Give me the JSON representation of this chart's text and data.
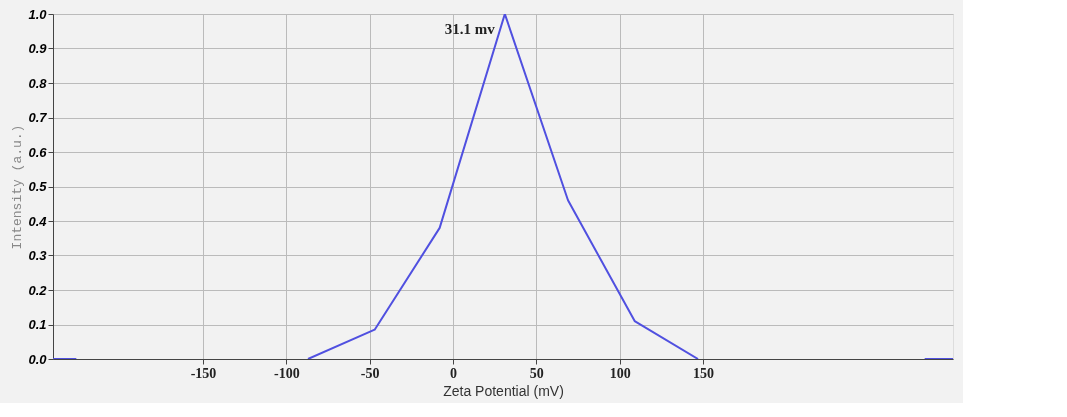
{
  "chart_data": {
    "type": "line",
    "xlabel": "Zeta Potential (mV)",
    "ylabel": "Intensity (a.u.)",
    "series": [
      {
        "color": "#5050e0",
        "x": [
          -240,
          -226
        ],
        "values": [
          0,
          0
        ]
      },
      {
        "color": "#5050e0",
        "x": [
          -87,
          -47,
          -8,
          31.1,
          69,
          109,
          147
        ],
        "values": [
          0,
          0.085,
          0.38,
          1.0,
          0.46,
          0.11,
          0
        ]
      },
      {
        "color": "#5050e0",
        "x": [
          283,
          300
        ],
        "values": [
          0,
          0
        ]
      }
    ],
    "xlim": [
      -240,
      300
    ],
    "xticks": [
      -150,
      -100,
      -50,
      0,
      50,
      100,
      150
    ],
    "ylim": [
      0,
      1.0
    ],
    "yticks": [
      {
        "value": 0,
        "label": "0.0"
      },
      {
        "value": 0.1,
        "label": "0.1"
      },
      {
        "value": 0.2,
        "label": "0.2"
      },
      {
        "value": 0.3,
        "label": "0.3"
      },
      {
        "value": 0.4,
        "label": "0.4"
      },
      {
        "value": 0.5,
        "label": "0.5"
      },
      {
        "value": 0.6,
        "label": "0.6"
      },
      {
        "value": 0.7,
        "label": "0.7"
      },
      {
        "value": 0.8,
        "label": "0.8"
      },
      {
        "value": 0.9,
        "label": "0.9"
      },
      {
        "value": 1.0,
        "label": "1.0"
      }
    ],
    "annotations": [
      {
        "text": "31.1 mv",
        "x": 31.1,
        "y": 1.0
      }
    ],
    "grid": true,
    "marker": "none",
    "line_style": "solid"
  }
}
